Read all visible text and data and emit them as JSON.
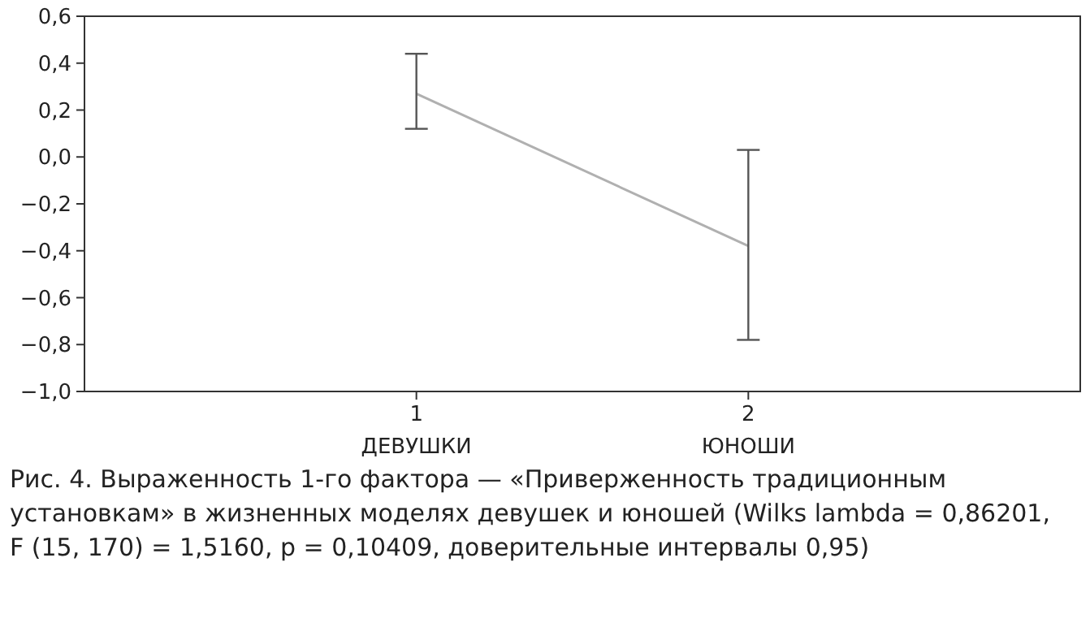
{
  "chart_data": {
    "type": "line",
    "categories": [
      "1\nДЕВУШКИ",
      "2\nЮНОШИ"
    ],
    "series": [
      {
        "color": "#b0b0b0",
        "values": [
          0.27,
          -0.38
        ],
        "errors": [
          [
            0.12,
            0.44
          ],
          [
            -0.78,
            0.03
          ]
        ]
      }
    ],
    "ylim": [
      -1,
      0.6
    ],
    "yticks": [
      {
        "value": -1,
        "label": "−1,0"
      },
      {
        "value": -0.8,
        "label": "−0,8"
      },
      {
        "value": -0.6,
        "label": "−0,6"
      },
      {
        "value": -0.4,
        "label": "−0,4"
      },
      {
        "value": -0.2,
        "label": "−0,2"
      },
      {
        "value": 0,
        "label": "0,0"
      },
      {
        "value": 0.2,
        "label": "0,2"
      },
      {
        "value": 0.4,
        "label": "0,4"
      },
      {
        "value": 0.6,
        "label": "0,6"
      }
    ],
    "marker": "none",
    "grid": false,
    "annotations": [
      "Рис. 4. Выраженность 1-го фактора — «Приверженность традиционным установкам» в жизненных моделях девушек и юношей (Wilks lambda = 0,86201, F (15, 170) = 1,5160, p = 0,10409, доверительные интервалы 0,95)"
    ]
  }
}
